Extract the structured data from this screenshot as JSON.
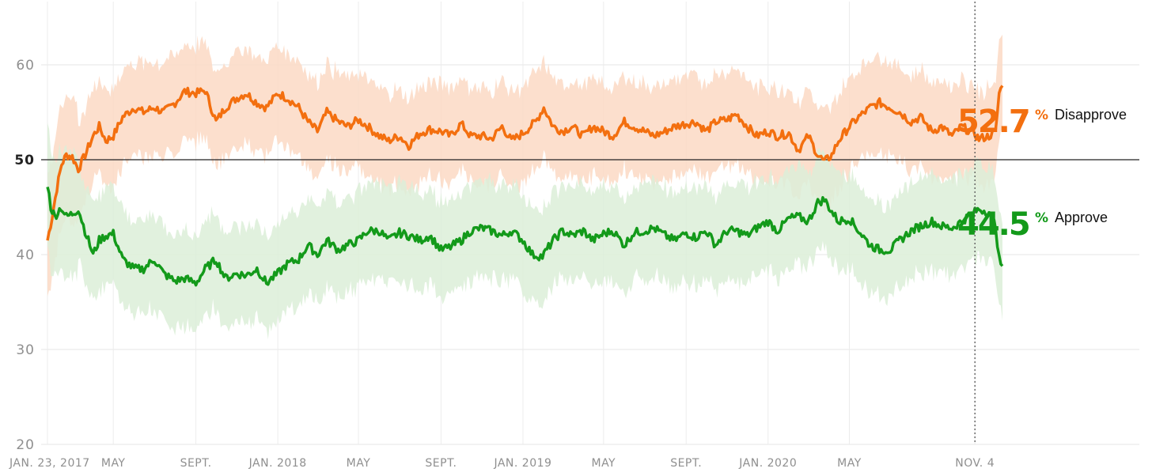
{
  "chart_data": {
    "type": "line",
    "ylim": [
      20,
      65
    ],
    "yticks": [
      20,
      30,
      40,
      50,
      60
    ],
    "x_range": [
      "2017-01-23",
      "2020-12-15"
    ],
    "x_ticks": [
      {
        "date": "2017-01-23",
        "label": "JAN. 23, 2017"
      },
      {
        "date": "2017-05-01",
        "label": "MAY"
      },
      {
        "date": "2017-09-01",
        "label": "SEPT."
      },
      {
        "date": "2018-01-01",
        "label": "JAN. 2018"
      },
      {
        "date": "2018-05-01",
        "label": "MAY"
      },
      {
        "date": "2018-09-01",
        "label": "SEPT."
      },
      {
        "date": "2019-01-01",
        "label": "JAN. 2019"
      },
      {
        "date": "2019-05-01",
        "label": "MAY"
      },
      {
        "date": "2019-09-01",
        "label": "SEPT."
      },
      {
        "date": "2020-01-01",
        "label": "JAN. 2020"
      },
      {
        "date": "2020-05-01",
        "label": "MAY"
      },
      {
        "date": "2020-11-04",
        "label": "NOV. 4"
      }
    ],
    "reference_line": 50,
    "marker_date": "2020-11-04",
    "series": [
      {
        "name": "Disapprove",
        "current_value": "52.7",
        "color": "#f36f0f",
        "band_color": "#fcd9c4",
        "band_width": 5,
        "points": [
          [
            "2017-01-23",
            41.5
          ],
          [
            "2017-01-30",
            44.0
          ],
          [
            "2017-02-06",
            47.0
          ],
          [
            "2017-02-13",
            49.5
          ],
          [
            "2017-02-20",
            50.5
          ],
          [
            "2017-03-01",
            50.3
          ],
          [
            "2017-03-10",
            49.0
          ],
          [
            "2017-03-20",
            50.5
          ],
          [
            "2017-04-01",
            52.5
          ],
          [
            "2017-04-10",
            53.5
          ],
          [
            "2017-04-20",
            52.0
          ],
          [
            "2017-05-01",
            52.5
          ],
          [
            "2017-05-15",
            54.5
          ],
          [
            "2017-06-01",
            55.5
          ],
          [
            "2017-06-15",
            55.0
          ],
          [
            "2017-07-01",
            55.5
          ],
          [
            "2017-07-15",
            55.0
          ],
          [
            "2017-08-01",
            56.0
          ],
          [
            "2017-08-15",
            57.2
          ],
          [
            "2017-09-01",
            57.0
          ],
          [
            "2017-09-15",
            57.3
          ],
          [
            "2017-10-01",
            54.0
          ],
          [
            "2017-10-15",
            55.5
          ],
          [
            "2017-11-01",
            56.5
          ],
          [
            "2017-11-15",
            57.0
          ],
          [
            "2017-12-01",
            56.0
          ],
          [
            "2017-12-15",
            55.5
          ],
          [
            "2018-01-01",
            57.0
          ],
          [
            "2018-01-15",
            56.5
          ],
          [
            "2018-02-01",
            55.5
          ],
          [
            "2018-02-15",
            54.0
          ],
          [
            "2018-03-01",
            53.0
          ],
          [
            "2018-03-15",
            55.0
          ],
          [
            "2018-04-01",
            54.0
          ],
          [
            "2018-04-15",
            53.5
          ],
          [
            "2018-05-01",
            54.2
          ],
          [
            "2018-05-15",
            53.5
          ],
          [
            "2018-06-01",
            52.5
          ],
          [
            "2018-06-15",
            52.0
          ],
          [
            "2018-07-01",
            52.5
          ],
          [
            "2018-07-15",
            51.5
          ],
          [
            "2018-08-01",
            52.8
          ],
          [
            "2018-08-15",
            53.2
          ],
          [
            "2018-09-01",
            53.0
          ],
          [
            "2018-09-15",
            52.5
          ],
          [
            "2018-10-01",
            53.8
          ],
          [
            "2018-10-15",
            52.5
          ],
          [
            "2018-11-01",
            52.5
          ],
          [
            "2018-11-15",
            52.2
          ],
          [
            "2018-12-01",
            53.5
          ],
          [
            "2018-12-15",
            52.0
          ],
          [
            "2019-01-01",
            52.8
          ],
          [
            "2019-01-20",
            54.0
          ],
          [
            "2019-02-01",
            55.5
          ],
          [
            "2019-02-15",
            53.5
          ],
          [
            "2019-03-01",
            53.0
          ],
          [
            "2019-03-15",
            53.5
          ],
          [
            "2019-04-01",
            52.5
          ],
          [
            "2019-04-15",
            53.5
          ],
          [
            "2019-05-01",
            53.0
          ],
          [
            "2019-05-15",
            52.5
          ],
          [
            "2019-06-01",
            54.0
          ],
          [
            "2019-06-15",
            53.5
          ],
          [
            "2019-07-01",
            53.0
          ],
          [
            "2019-07-15",
            52.5
          ],
          [
            "2019-08-01",
            53.0
          ],
          [
            "2019-08-15",
            53.5
          ],
          [
            "2019-09-01",
            53.8
          ],
          [
            "2019-09-15",
            54.0
          ],
          [
            "2019-10-01",
            53.0
          ],
          [
            "2019-10-15",
            54.0
          ],
          [
            "2019-11-01",
            54.2
          ],
          [
            "2019-11-15",
            54.8
          ],
          [
            "2019-12-01",
            53.5
          ],
          [
            "2019-12-15",
            52.5
          ],
          [
            "2020-01-01",
            53.0
          ],
          [
            "2020-01-15",
            52.5
          ],
          [
            "2020-02-01",
            52.8
          ],
          [
            "2020-02-15",
            51.0
          ],
          [
            "2020-03-01",
            52.5
          ],
          [
            "2020-03-15",
            50.5
          ],
          [
            "2020-03-25",
            49.8
          ],
          [
            "2020-04-05",
            50.5
          ],
          [
            "2020-04-15",
            52.0
          ],
          [
            "2020-05-01",
            53.5
          ],
          [
            "2020-05-15",
            54.5
          ],
          [
            "2020-06-01",
            55.5
          ],
          [
            "2020-06-15",
            56.0
          ],
          [
            "2020-07-01",
            55.5
          ],
          [
            "2020-07-15",
            55.0
          ],
          [
            "2020-08-01",
            54.0
          ],
          [
            "2020-08-15",
            54.5
          ],
          [
            "2020-09-01",
            53.0
          ],
          [
            "2020-09-15",
            53.5
          ],
          [
            "2020-10-01",
            52.5
          ],
          [
            "2020-10-15",
            53.5
          ],
          [
            "2020-11-04",
            52.7
          ],
          [
            "2020-11-10",
            52.2
          ],
          [
            "2020-11-25",
            52.5
          ],
          [
            "2020-12-05",
            53.0
          ],
          [
            "2020-12-10",
            57.0
          ],
          [
            "2020-12-15",
            57.8
          ]
        ]
      },
      {
        "name": "Approve",
        "current_value": "44.5",
        "color": "#139a1a",
        "band_color": "#dcefd8",
        "band_width": 5,
        "points": [
          [
            "2017-01-23",
            47.5
          ],
          [
            "2017-01-28",
            45.0
          ],
          [
            "2017-02-03",
            44.0
          ],
          [
            "2017-02-12",
            45.0
          ],
          [
            "2017-02-20",
            44.0
          ],
          [
            "2017-03-01",
            44.3
          ],
          [
            "2017-03-10",
            44.8
          ],
          [
            "2017-03-20",
            42.5
          ],
          [
            "2017-04-01",
            40.0
          ],
          [
            "2017-04-10",
            41.5
          ],
          [
            "2017-04-20",
            42.0
          ],
          [
            "2017-05-01",
            42.2
          ],
          [
            "2017-05-15",
            39.5
          ],
          [
            "2017-06-01",
            38.5
          ],
          [
            "2017-06-15",
            38.5
          ],
          [
            "2017-07-01",
            39.5
          ],
          [
            "2017-07-15",
            38.0
          ],
          [
            "2017-08-01",
            37.2
          ],
          [
            "2017-08-15",
            37.5
          ],
          [
            "2017-09-01",
            37.0
          ],
          [
            "2017-09-15",
            38.5
          ],
          [
            "2017-10-01",
            39.5
          ],
          [
            "2017-10-15",
            37.5
          ],
          [
            "2017-11-01",
            38.0
          ],
          [
            "2017-11-15",
            37.8
          ],
          [
            "2017-12-01",
            38.5
          ],
          [
            "2017-12-15",
            37.0
          ],
          [
            "2018-01-01",
            38.0
          ],
          [
            "2018-01-15",
            39.0
          ],
          [
            "2018-02-01",
            39.5
          ],
          [
            "2018-02-15",
            41.0
          ],
          [
            "2018-03-01",
            40.0
          ],
          [
            "2018-03-15",
            41.5
          ],
          [
            "2018-04-01",
            40.5
          ],
          [
            "2018-04-15",
            41.0
          ],
          [
            "2018-05-01",
            41.5
          ],
          [
            "2018-05-15",
            42.5
          ],
          [
            "2018-06-01",
            42.5
          ],
          [
            "2018-06-15",
            41.5
          ],
          [
            "2018-07-01",
            42.3
          ],
          [
            "2018-07-15",
            42.0
          ],
          [
            "2018-08-01",
            41.5
          ],
          [
            "2018-08-15",
            42.0
          ],
          [
            "2018-09-01",
            40.5
          ],
          [
            "2018-09-15",
            40.8
          ],
          [
            "2018-10-01",
            41.5
          ],
          [
            "2018-10-15",
            42.5
          ],
          [
            "2018-11-01",
            42.8
          ],
          [
            "2018-11-15",
            42.5
          ],
          [
            "2018-12-01",
            42.0
          ],
          [
            "2018-12-15",
            42.5
          ],
          [
            "2019-01-01",
            41.5
          ],
          [
            "2019-01-15",
            40.0
          ],
          [
            "2019-01-30",
            39.8
          ],
          [
            "2019-02-15",
            41.5
          ],
          [
            "2019-03-01",
            42.5
          ],
          [
            "2019-03-15",
            42.0
          ],
          [
            "2019-04-01",
            42.5
          ],
          [
            "2019-04-15",
            41.5
          ],
          [
            "2019-05-01",
            42.2
          ],
          [
            "2019-05-15",
            42.5
          ],
          [
            "2019-06-01",
            41.0
          ],
          [
            "2019-06-15",
            42.3
          ],
          [
            "2019-07-01",
            42.5
          ],
          [
            "2019-07-15",
            42.8
          ],
          [
            "2019-08-01",
            42.0
          ],
          [
            "2019-08-15",
            41.5
          ],
          [
            "2019-09-01",
            42.3
          ],
          [
            "2019-09-15",
            41.8
          ],
          [
            "2019-10-01",
            42.5
          ],
          [
            "2019-10-15",
            41.0
          ],
          [
            "2019-11-01",
            42.5
          ],
          [
            "2019-11-15",
            42.5
          ],
          [
            "2019-12-01",
            42.0
          ],
          [
            "2019-12-15",
            42.8
          ],
          [
            "2020-01-01",
            43.5
          ],
          [
            "2020-01-15",
            42.5
          ],
          [
            "2020-02-01",
            43.8
          ],
          [
            "2020-02-15",
            44.0
          ],
          [
            "2020-03-01",
            43.5
          ],
          [
            "2020-03-15",
            45.5
          ],
          [
            "2020-03-25",
            45.8
          ],
          [
            "2020-04-05",
            44.5
          ],
          [
            "2020-04-15",
            43.5
          ],
          [
            "2020-05-01",
            43.8
          ],
          [
            "2020-05-15",
            42.5
          ],
          [
            "2020-06-01",
            41.0
          ],
          [
            "2020-06-15",
            40.5
          ],
          [
            "2020-07-01",
            40.5
          ],
          [
            "2020-07-15",
            41.5
          ],
          [
            "2020-08-01",
            42.5
          ],
          [
            "2020-08-15",
            43.0
          ],
          [
            "2020-09-01",
            43.5
          ],
          [
            "2020-09-15",
            43.0
          ],
          [
            "2020-10-01",
            42.8
          ],
          [
            "2020-10-15",
            43.5
          ],
          [
            "2020-11-04",
            44.5
          ],
          [
            "2020-11-10",
            44.8
          ],
          [
            "2020-11-25",
            44.5
          ],
          [
            "2020-12-05",
            43.0
          ],
          [
            "2020-12-10",
            39.5
          ],
          [
            "2020-12-15",
            38.8
          ]
        ]
      }
    ]
  }
}
